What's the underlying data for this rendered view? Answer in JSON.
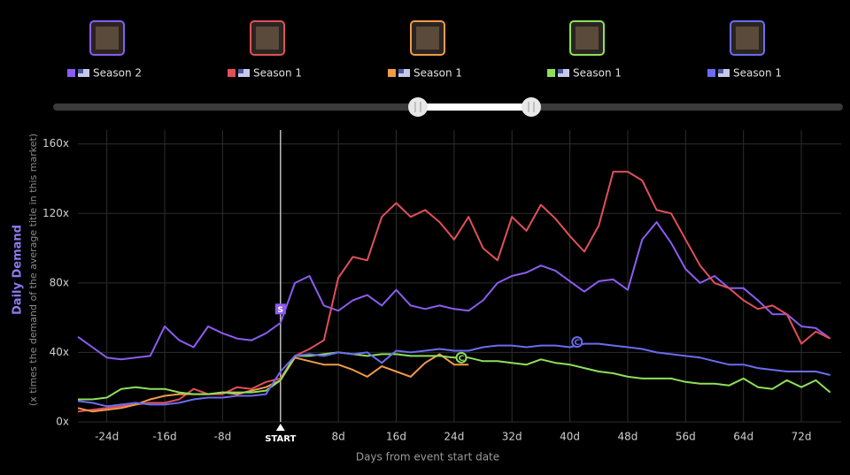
{
  "chart_data": {
    "type": "line",
    "y_label": "Daily Demand",
    "y_sublabel": "(x times the demand of the average title in this market)",
    "x_label": "Days from event start date",
    "x": [
      -28,
      -26,
      -24,
      -22,
      -20,
      -18,
      -16,
      -14,
      -12,
      -10,
      -8,
      -6,
      -4,
      -2,
      0,
      2,
      4,
      6,
      8,
      10,
      12,
      14,
      16,
      18,
      20,
      22,
      24,
      26,
      28,
      30,
      32,
      34,
      36,
      38,
      40,
      42,
      44,
      46,
      48,
      50,
      52,
      54,
      56,
      58,
      60,
      62,
      64,
      66,
      68,
      70,
      72,
      74,
      76
    ],
    "series": [
      {
        "name": "Season 2",
        "color": "#8b5cf0",
        "values": [
          49,
          43,
          37,
          36,
          37,
          38,
          55,
          47,
          43,
          55,
          51,
          48,
          47,
          51,
          57,
          80,
          84,
          67,
          64,
          70,
          73,
          67,
          76,
          67,
          65,
          67,
          65,
          64,
          70,
          80,
          84,
          86,
          90,
          87,
          81,
          75,
          81,
          82,
          76,
          105,
          115,
          103,
          88,
          80,
          84,
          77,
          77,
          70,
          62,
          62,
          55,
          54,
          48
        ]
      },
      {
        "name": "Season 1",
        "color": "#e0505a",
        "values": [
          6,
          7,
          8,
          9,
          10,
          11,
          11,
          13,
          19,
          16,
          16,
          20,
          19,
          23,
          25,
          38,
          42,
          47,
          83,
          95,
          93,
          118,
          126,
          118,
          122,
          115,
          105,
          118,
          100,
          93,
          118,
          110,
          125,
          117,
          107,
          98,
          113,
          144,
          144,
          139,
          122,
          120,
          105,
          90,
          80,
          77,
          70,
          65,
          67,
          62,
          45,
          52,
          48
        ]
      },
      {
        "name": "Season 1",
        "color": "#f09a4a",
        "values": [
          8,
          6,
          7,
          8,
          10,
          13,
          15,
          16,
          16,
          16,
          17,
          16,
          18,
          20,
          24,
          37,
          35,
          33,
          33,
          30,
          26,
          32,
          29,
          26,
          34,
          39,
          33,
          33,
          null,
          null,
          null,
          null,
          null,
          null,
          null,
          null,
          null,
          null,
          null,
          null,
          null,
          null,
          null,
          null,
          null,
          null,
          null,
          null,
          null,
          null,
          null,
          null,
          null
        ]
      },
      {
        "name": "Season 1",
        "color": "#8ee05a",
        "values": [
          13,
          13,
          14,
          19,
          20,
          19,
          19,
          17,
          16,
          16,
          17,
          17,
          17,
          18,
          24,
          38,
          38,
          39,
          40,
          39,
          38,
          39,
          39,
          38,
          38,
          38,
          37,
          37,
          35,
          35,
          34,
          33,
          36,
          34,
          33,
          31,
          29,
          28,
          26,
          25,
          25,
          25,
          23,
          22,
          22,
          21,
          25,
          20,
          19,
          24,
          20,
          24,
          17
        ]
      },
      {
        "name": "Season 1",
        "color": "#6a6cf0",
        "values": [
          12,
          11,
          9,
          10,
          11,
          10,
          10,
          11,
          13,
          14,
          14,
          15,
          15,
          16,
          29,
          38,
          39,
          38,
          40,
          39,
          40,
          34,
          41,
          40,
          41,
          42,
          41,
          41,
          43,
          44,
          44,
          43,
          44,
          44,
          43,
          45,
          45,
          44,
          43,
          42,
          40,
          39,
          38,
          37,
          35,
          33,
          33,
          31,
          30,
          29,
          29,
          29,
          27
        ]
      }
    ],
    "annotations": [
      {
        "label": "S",
        "x": 0,
        "y": 65,
        "color": "#8b5cf0",
        "shape": "square"
      },
      {
        "label": "C",
        "x": 41,
        "y": 46,
        "color": "#6a6cf0",
        "shape": "circle"
      },
      {
        "label": "C",
        "x": 25,
        "y": 37,
        "color": "#8ee05a",
        "shape": "circle"
      }
    ],
    "xlim": [
      -28,
      77.5
    ],
    "ylim": [
      0,
      168
    ],
    "xticks": [
      {
        "value": -24,
        "label": "-24d"
      },
      {
        "value": -16,
        "label": "-16d"
      },
      {
        "value": -8,
        "label": "-8d"
      },
      {
        "value": 0,
        "label": "START"
      },
      {
        "value": 8,
        "label": "8d"
      },
      {
        "value": 16,
        "label": "16d"
      },
      {
        "value": 24,
        "label": "24d"
      },
      {
        "value": 32,
        "label": "32d"
      },
      {
        "value": 40,
        "label": "40d"
      },
      {
        "value": 48,
        "label": "48d"
      },
      {
        "value": 56,
        "label": "56d"
      },
      {
        "value": 64,
        "label": "64d"
      },
      {
        "value": 72,
        "label": "72d"
      }
    ],
    "yticks": [
      {
        "value": 0,
        "label": "0x"
      },
      {
        "value": 40,
        "label": "40x"
      },
      {
        "value": 80,
        "label": "80x"
      },
      {
        "value": 120,
        "label": "120x"
      },
      {
        "value": 160,
        "label": "160x"
      }
    ],
    "grid": true
  }
}
